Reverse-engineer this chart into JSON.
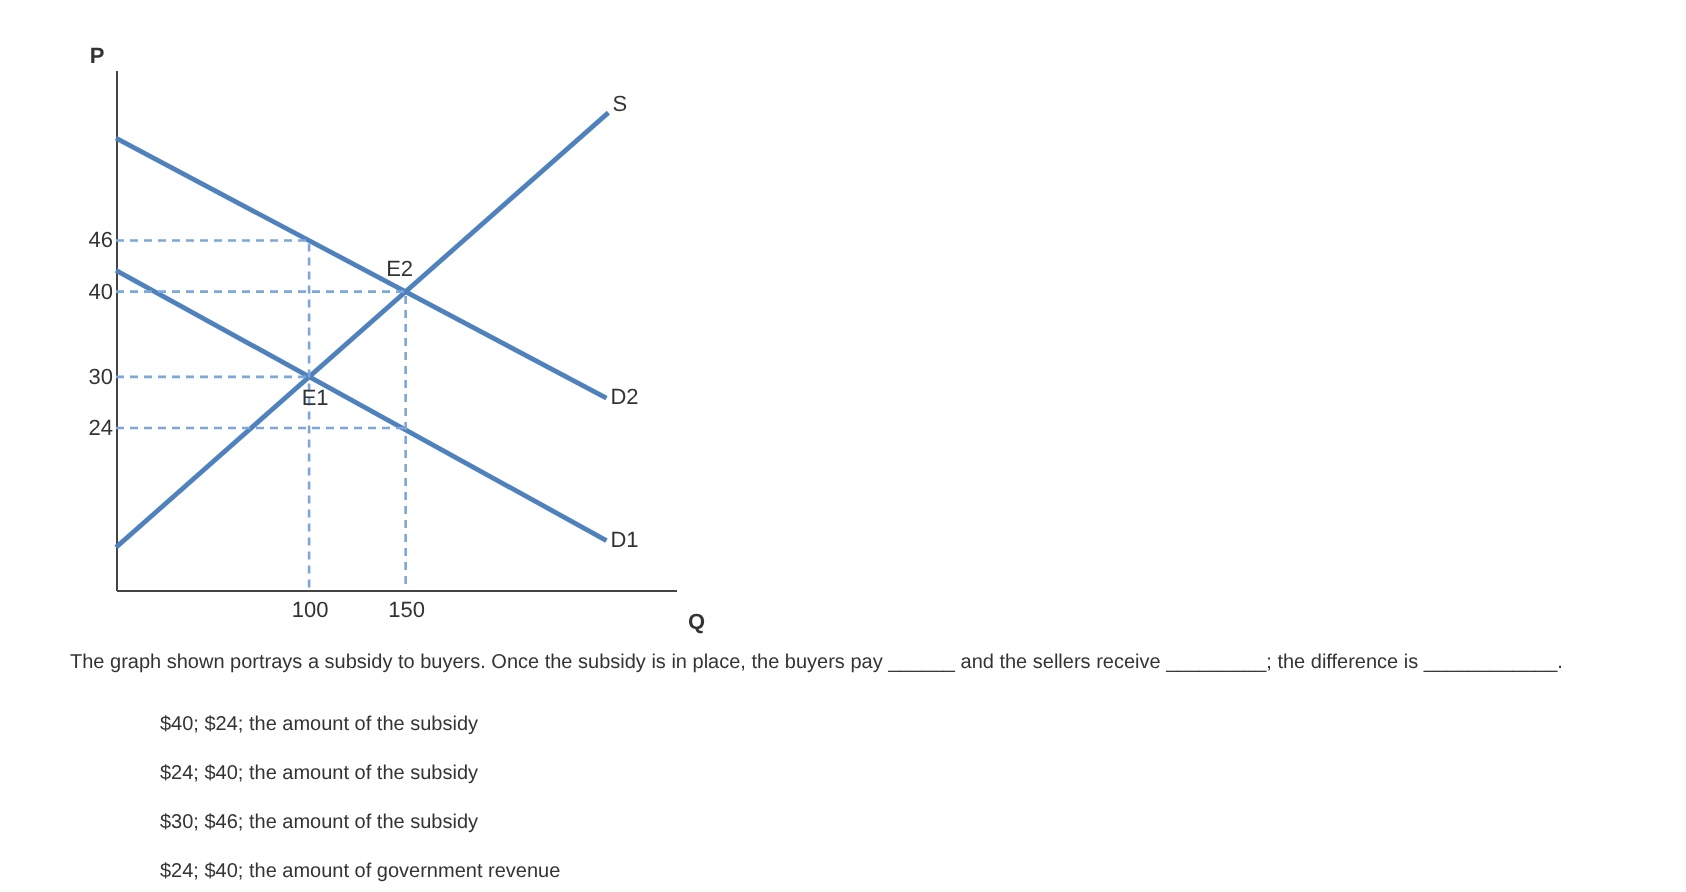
{
  "chart_data": {
    "type": "line",
    "xlabel": "Q",
    "ylabel": "P",
    "xlim": [
      0,
      290
    ],
    "ylim": [
      5,
      66
    ],
    "xticks": [
      100,
      150
    ],
    "yticks": [
      24,
      30,
      40,
      46
    ],
    "grid": false,
    "line_style": "solid",
    "series": [
      {
        "name": "S",
        "color": "#4f81bd",
        "x": [
          0,
          255
        ],
        "values": [
          10,
          61
        ]
      },
      {
        "name": "D2",
        "color": "#4f81bd",
        "x": [
          0,
          254
        ],
        "values": [
          58,
          27.5
        ]
      },
      {
        "name": "D1",
        "color": "#4f81bd",
        "x": [
          0,
          254
        ],
        "values": [
          42.5,
          10.8
        ]
      },
      {
        "color": "#7ea6d8",
        "line_style": "dashed",
        "x": [
          0,
          100,
          100
        ],
        "values": [
          46,
          46,
          5
        ]
      },
      {
        "color": "#7ea6d8",
        "line_style": "dashed",
        "x": [
          0,
          150,
          150
        ],
        "values": [
          40,
          40,
          5
        ]
      },
      {
        "color": "#7ea6d8",
        "line_style": "dashed",
        "x": [
          0,
          100
        ],
        "values": [
          30,
          30
        ]
      },
      {
        "color": "#7ea6d8",
        "line_style": "dashed",
        "x": [
          0,
          150
        ],
        "values": [
          24,
          24
        ]
      }
    ],
    "annotations": [
      {
        "text": "E2",
        "x": 150,
        "y": 40
      },
      {
        "text": "E1",
        "x": 100,
        "y": 30
      },
      "The graph shown portrays a subsidy to buyers. Once the subsidy is in place, the buyers pay ______ and the sellers receive _________; the difference is ____________.",
      "$40; $24; the amount of the subsidy",
      "$24; $40; the amount of the subsidy",
      "$30; $46; the amount of the subsidy",
      "$24; $40; the amount of government revenue"
    ]
  }
}
